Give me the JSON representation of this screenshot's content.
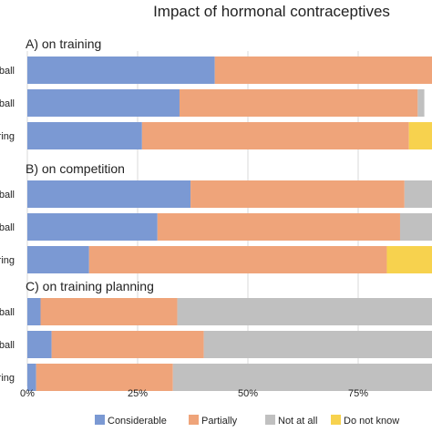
{
  "chart_data": {
    "type": "bar",
    "orientation": "horizontal",
    "stacked": true,
    "title": "Impact of hormonal contraceptives",
    "xlabel": "",
    "ylabel": "",
    "xlim": [
      0,
      100
    ],
    "x_ticks": [
      "0%",
      "25%",
      "50%",
      "75%"
    ],
    "grid": true,
    "legend_position": "bottom",
    "series": [
      {
        "name": "Considerable",
        "color": "#7b99d3"
      },
      {
        "name": "Partially",
        "color": "#efa47a"
      },
      {
        "name": "Not at all",
        "color": "#c0c0c0"
      },
      {
        "name": "Do not know",
        "color": "#f7d24e"
      }
    ],
    "panels": [
      {
        "title": "A) on training",
        "categories": [
          "ball",
          "ball",
          "ring"
        ],
        "values": [
          [
            42.5,
            57.5,
            0,
            0
          ],
          [
            34.5,
            54,
            1.5,
            0
          ],
          [
            26,
            60.5,
            0,
            13.5
          ]
        ]
      },
      {
        "title": "B) on competition",
        "categories": [
          "ball",
          "ball",
          "ring"
        ],
        "values": [
          [
            37,
            48.5,
            14.5,
            0
          ],
          [
            29.5,
            55,
            15.5,
            0
          ],
          [
            14,
            67.5,
            0,
            18.5
          ]
        ]
      },
      {
        "title": "C) on training planning",
        "categories": [
          "ball",
          "ball",
          "ring"
        ],
        "values": [
          [
            3,
            31,
            66,
            0
          ],
          [
            5.5,
            34.5,
            60,
            0
          ],
          [
            2,
            31,
            67,
            0
          ]
        ]
      }
    ]
  }
}
